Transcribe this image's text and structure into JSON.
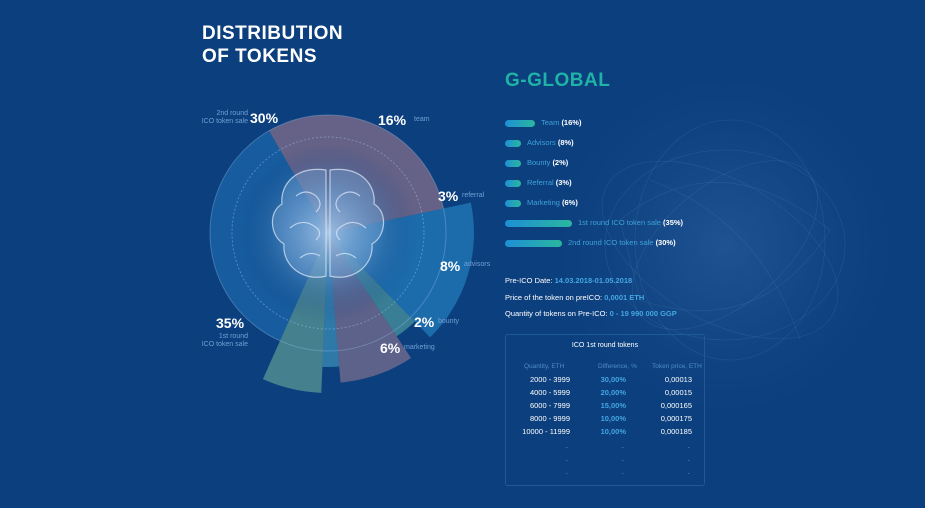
{
  "title": {
    "line1": "DISTRIBUTION",
    "line2": "OF TOKENS"
  },
  "colors": {
    "background": "#0c3f7e",
    "brand": "#1fb2a6",
    "accent": "#43a6e2",
    "bar_start": "#1e8fd6",
    "bar_end": "#2ab79f",
    "label_muted": "#6fa0d4"
  },
  "chart_data": {
    "type": "pie",
    "center_image": "brain-illustration",
    "slices": [
      {
        "label": "2nd round ICO token sale",
        "value": 30,
        "display": "30%",
        "side_label": [
          "2nd round",
          "ICO token sale"
        ],
        "color": "#b07f8e"
      },
      {
        "label": "team",
        "value": 16,
        "display": "16%",
        "side_label": [
          "team"
        ],
        "color": "#2a8fcf"
      },
      {
        "label": "referral",
        "value": 3,
        "display": "3%",
        "side_label": [
          "referral"
        ],
        "color": "#5fb3a8"
      },
      {
        "label": "advisors",
        "value": 8,
        "display": "8%",
        "side_label": [
          "advisors"
        ],
        "color": "#a17f93"
      },
      {
        "label": "bounty",
        "value": 2,
        "display": "2%",
        "side_label": [
          "bounty"
        ],
        "color": "#4ba9c9"
      },
      {
        "label": "marketing",
        "value": 6,
        "display": "6%",
        "side_label": [
          "marketing"
        ],
        "color": "#74b69a"
      },
      {
        "label": "1st round ICO token sale",
        "value": 35,
        "display": "35%",
        "side_label": [
          "1st round",
          "ICO token sale"
        ],
        "color": "#1f74b8"
      }
    ]
  },
  "brand": "G-GLOBAL",
  "legend": [
    {
      "name": "Team",
      "pct": "(16%)",
      "share": 16
    },
    {
      "name": "Advisors",
      "pct": "(8%)",
      "share": 8
    },
    {
      "name": "Bounty",
      "pct": "(2%)",
      "share": 2
    },
    {
      "name": "Referral",
      "pct": "(3%)",
      "share": 3
    },
    {
      "name": "Marketing",
      "pct": "(6%)",
      "share": 6
    },
    {
      "name": "1st round ICO token sale",
      "pct": "(35%)",
      "share": 35
    },
    {
      "name": "2nd round ICO token sale",
      "pct": "(30%)",
      "share": 30
    }
  ],
  "info": {
    "date_label": "Pre-ICO Date:",
    "date_value": "14.03.2018-01.05.2018",
    "price_label": "Price of the token on preICO:",
    "price_value": "0,0001 ETH",
    "qty_label": "Quantity of tokens on Pre-ICO:",
    "qty_value": "0 - 19 990 000 GGP"
  },
  "ico_table": {
    "title": "ICO 1st round tokens",
    "headers": [
      "Quantity, ETH",
      "Difference, %",
      "Token price, ETH"
    ],
    "rows": [
      [
        "2000 - 3999",
        "30,00%",
        "0,00013"
      ],
      [
        "4000 - 5999",
        "20,00%",
        "0,00015"
      ],
      [
        "6000 - 7999",
        "15,00%",
        "0,000165"
      ],
      [
        "8000 - 9999",
        "10,00%",
        "0,000175"
      ],
      [
        "10000 - 11999",
        "10,00%",
        "0,000185"
      ]
    ],
    "ellipsis": "."
  }
}
